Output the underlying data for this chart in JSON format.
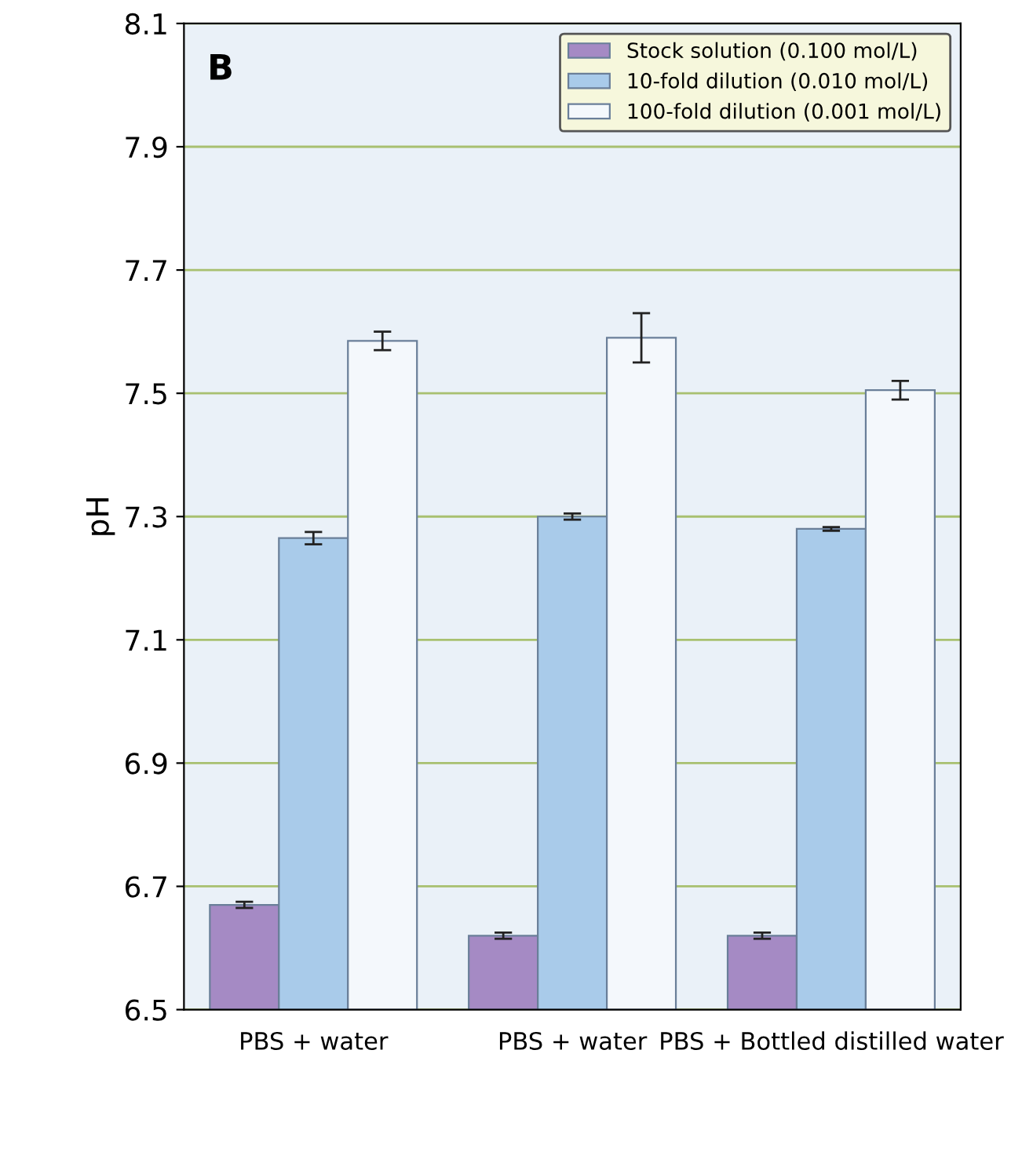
{
  "chart_data": {
    "type": "bar",
    "ylabel": "pH",
    "categories": [
      "PBS + water",
      "PBS + water",
      "PBS + Bottled distilled water"
    ],
    "series": [
      {
        "name": "Stock solution (0.100 mol/L)",
        "color": "#a58ac4",
        "values": [
          6.67,
          6.62,
          6.62
        ],
        "errors": [
          0.005,
          0.005,
          0.005
        ]
      },
      {
        "name": "10-fold dilution (0.010 mol/L)",
        "color": "#a9cbea",
        "values": [
          7.265,
          7.3,
          7.28
        ],
        "errors": [
          0.01,
          0.005,
          0.003
        ]
      },
      {
        "name": "100-fold dilution (0.001 mol/L)",
        "color": "#f4f8fc",
        "values": [
          7.585,
          7.59,
          7.505
        ],
        "errors": [
          0.015,
          0.04,
          0.015
        ]
      }
    ],
    "ylim": [
      6.5,
      8.1
    ],
    "yticks": [
      6.5,
      6.7,
      6.9,
      7.1,
      7.3,
      7.5,
      7.7,
      7.9,
      8.1
    ],
    "grid": "y",
    "legend": "top right",
    "annotations": [
      "B"
    ]
  }
}
